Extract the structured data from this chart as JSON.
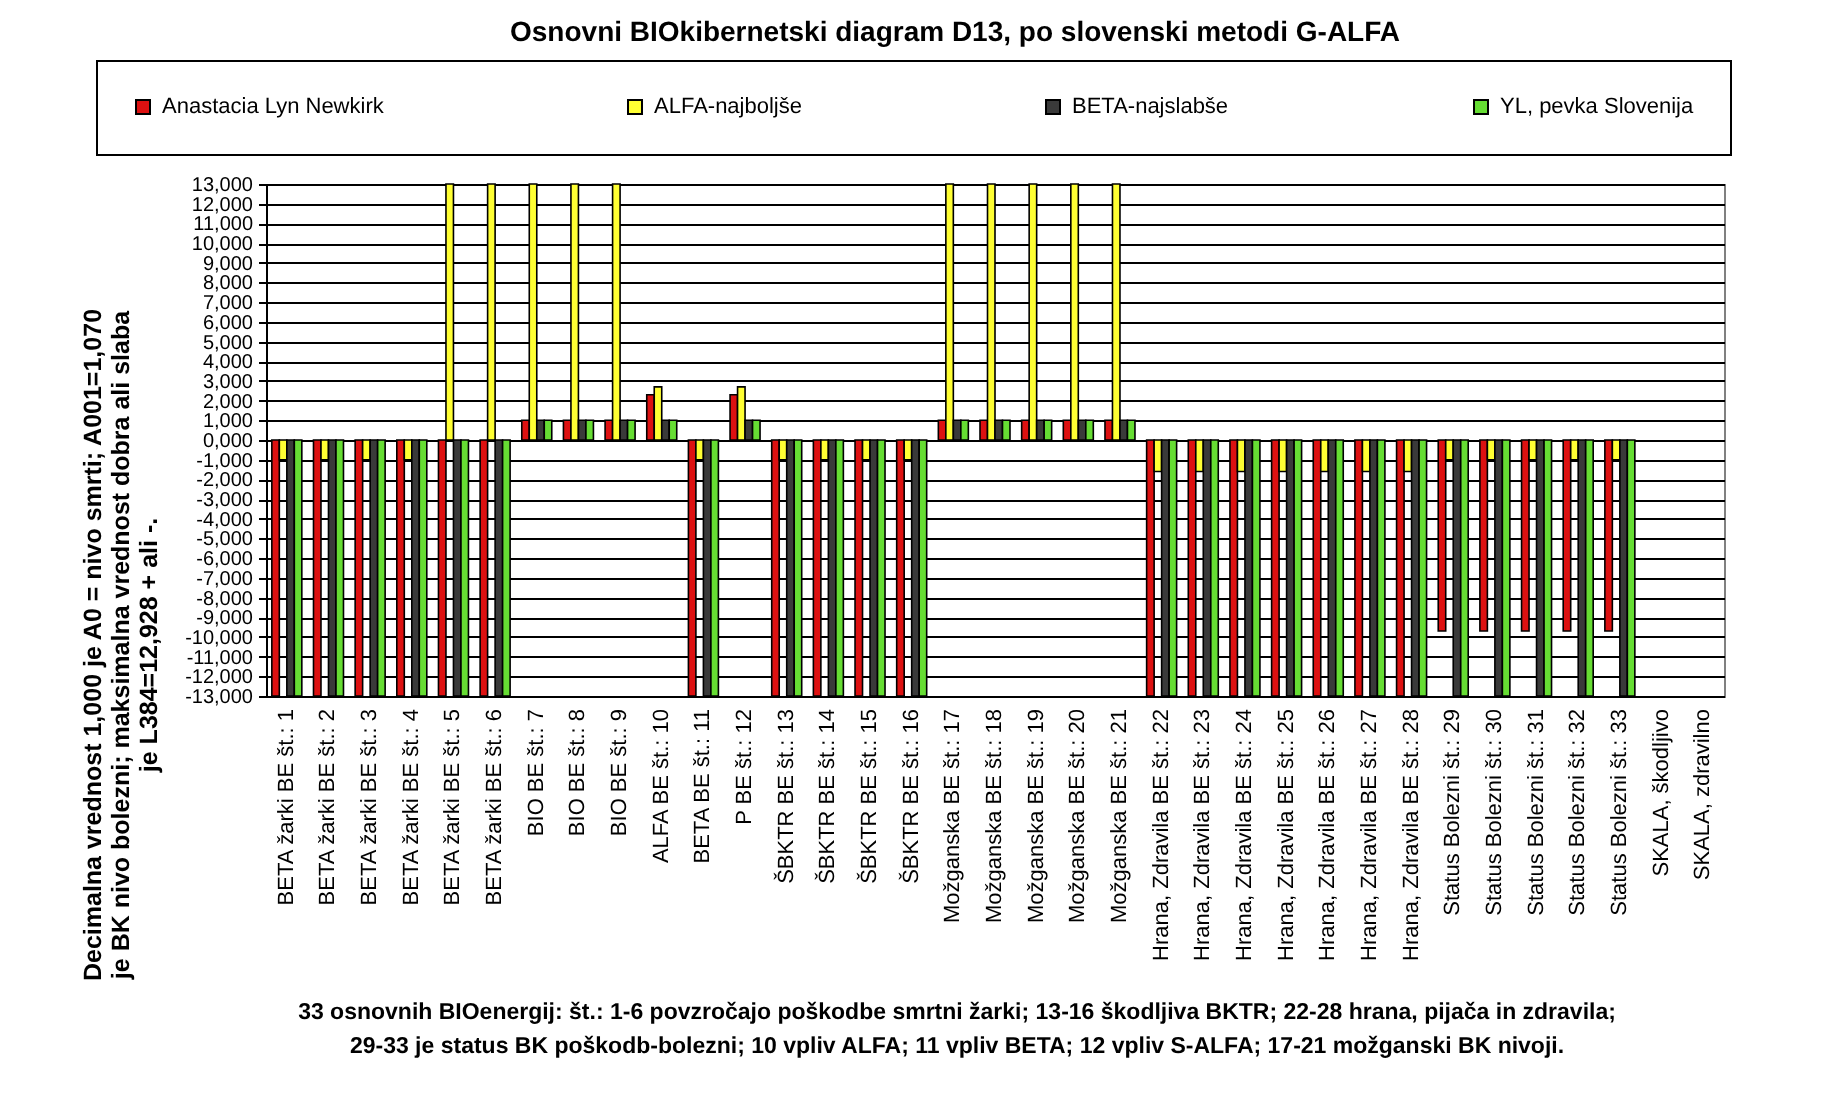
{
  "chart_data": {
    "type": "bar",
    "title": "Osnovni BIOkibernetski diagram D13, po slovenski metodi G-ALFA",
    "ylabel": "Decimalna vrednost 1,000 je A0 = nivo smrti; A001=1,070\nje BK nivo bolezni; maksimalna vrednost dobra ali slaba\nje L384=12,928 + ali -.",
    "xlabel": "33 osnovnih BIOenergij: št.: 1-6 povzročajo poškodbe smrtni žarki; 13-16 škodljiva BKTR; 22-28 hrana, pijača in zdravila;\n29-33 je status BK poškodb-bolezni; 10 vpliv ALFA; 11 vpliv BETA; 12 vpliv S-ALFA; 17-21 možganski BK nivoji.",
    "categories": [
      "BETA žarki BE št.: 1",
      "BETA žarki BE št.: 2",
      "BETA žarki BE št.: 3",
      "BETA žarki BE št.: 4",
      "BETA žarki BE št.: 5",
      "BETA žarki BE št.: 6",
      "BIO BE št.: 7",
      "BIO BE št.: 8",
      "BIO BE št.: 9",
      "ALFA BE št.: 10",
      "BETA BE št.: 11",
      "P BE št.: 12",
      "ŠBKTR BE št.: 13",
      "ŠBKTR BE št.: 14",
      "ŠBKTR BE št.: 15",
      "ŠBKTR BE št.: 16",
      "Možganska BE št.: 17",
      "Možganska BE št.: 18",
      "Možganska BE št.: 19",
      "Možganska BE št.: 20",
      "Možganska BE št.: 21",
      "Hrana, Zdravila BE št.: 22",
      "Hrana, Zdravila BE št.: 23",
      "Hrana, Zdravila BE št.: 24",
      "Hrana, Zdravila BE št.: 25",
      "Hrana, Zdravila BE št.: 26",
      "Hrana, Zdravila BE št.: 27",
      "Hrana, Zdravila BE št.: 28",
      "Status Bolezni št.: 29",
      "Status Bolezni št.: 30",
      "Status Bolezni št.: 31",
      "Status Bolezni št.: 32",
      "Status Bolezni št.: 33",
      "SKALA, škodljivo",
      "SKALA, zdravilno"
    ],
    "series": [
      {
        "name": "Anastacia Lyn Newkirk",
        "color": "#dd1111",
        "values": [
          -13000,
          -13000,
          -13000,
          -13000,
          -13000,
          -13000,
          1000,
          1000,
          1000,
          2300,
          -13000,
          2300,
          -13000,
          -13000,
          -13000,
          -13000,
          1000,
          1000,
          1000,
          1000,
          1000,
          -13000,
          -13000,
          -13000,
          -13000,
          -13000,
          -13000,
          -13000,
          -9700,
          -9700,
          -9700,
          -9700,
          -9700,
          null,
          null
        ]
      },
      {
        "name": "ALFA-najboljše",
        "color": "#ffff33",
        "values": [
          -1000,
          -1000,
          -1000,
          -1000,
          13000,
          13000,
          13000,
          13000,
          13000,
          2700,
          -1000,
          2700,
          -1000,
          -1000,
          -1000,
          -1000,
          13000,
          13000,
          13000,
          13000,
          13000,
          -1600,
          -1600,
          -1600,
          -1600,
          -1600,
          -1600,
          -1600,
          -1000,
          -1000,
          -1000,
          -1000,
          -1000,
          null,
          null
        ]
      },
      {
        "name": "BETA-najslabše",
        "color": "#3a3a3a",
        "values": [
          -13000,
          -13000,
          -13000,
          -13000,
          -13000,
          -13000,
          1000,
          1000,
          1000,
          1000,
          -13000,
          1000,
          -13000,
          -13000,
          -13000,
          -13000,
          1000,
          1000,
          1000,
          1000,
          1000,
          -13000,
          -13000,
          -13000,
          -13000,
          -13000,
          -13000,
          -13000,
          -13000,
          -13000,
          -13000,
          -13000,
          -13000,
          null,
          null
        ]
      },
      {
        "name": "YL, pevka Slovenija",
        "color": "#66dd33",
        "values": [
          -13000,
          -13000,
          -13000,
          -13000,
          -13000,
          -13000,
          1000,
          1000,
          1000,
          1000,
          -13000,
          1000,
          -13000,
          -13000,
          -13000,
          -13000,
          1000,
          1000,
          1000,
          1000,
          1000,
          -13000,
          -13000,
          -13000,
          -13000,
          -13000,
          -13000,
          -13000,
          -13000,
          -13000,
          -13000,
          -13000,
          -13000,
          null,
          null
        ]
      }
    ],
    "ylim": [
      -13000,
      13000
    ],
    "yticks": [
      {
        "value": -13000,
        "label": "-13,000"
      },
      {
        "value": -12000,
        "label": "-12,000"
      },
      {
        "value": -11000,
        "label": "-11,000"
      },
      {
        "value": -10000,
        "label": "-10,000"
      },
      {
        "value": -9000,
        "label": "-9,000"
      },
      {
        "value": -8000,
        "label": "-8,000"
      },
      {
        "value": -7000,
        "label": "-7,000"
      },
      {
        "value": -6000,
        "label": "-6,000"
      },
      {
        "value": -5000,
        "label": "-5,000"
      },
      {
        "value": -4000,
        "label": "-4,000"
      },
      {
        "value": -3000,
        "label": "-3,000"
      },
      {
        "value": -2000,
        "label": "-2,000"
      },
      {
        "value": -1000,
        "label": "-1,000"
      },
      {
        "value": 0,
        "label": "0,000"
      },
      {
        "value": 1000,
        "label": "1,000"
      },
      {
        "value": 2000,
        "label": "2,000"
      },
      {
        "value": 3000,
        "label": "3,000"
      },
      {
        "value": 4000,
        "label": "4,000"
      },
      {
        "value": 5000,
        "label": "5,000"
      },
      {
        "value": 6000,
        "label": "6,000"
      },
      {
        "value": 7000,
        "label": "7,000"
      },
      {
        "value": 8000,
        "label": "8,000"
      },
      {
        "value": 9000,
        "label": "9,000"
      },
      {
        "value": 10000,
        "label": "10,000"
      },
      {
        "value": 11000,
        "label": "11,000"
      },
      {
        "value": 12000,
        "label": "12,000"
      },
      {
        "value": 13000,
        "label": "13,000"
      }
    ],
    "grid": "y",
    "legend": "top"
  }
}
